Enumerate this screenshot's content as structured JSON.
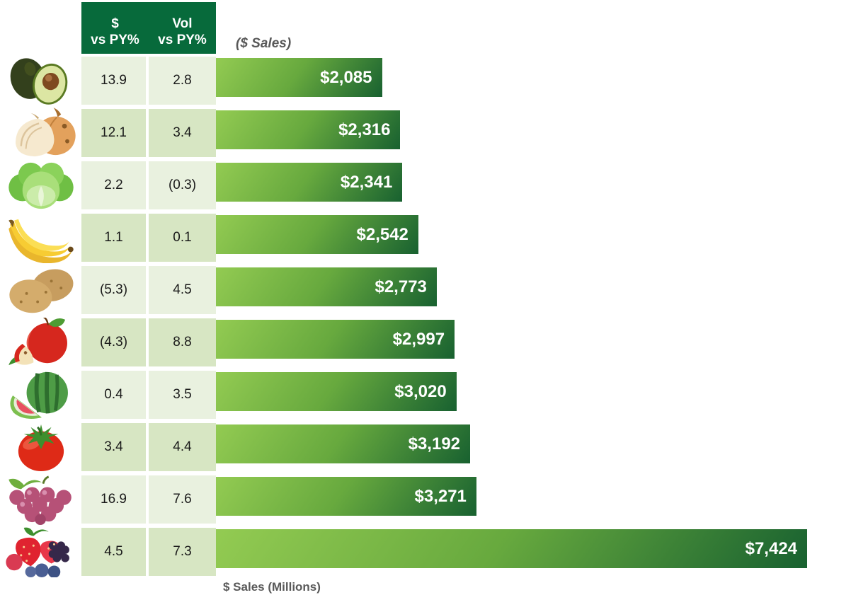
{
  "header": {
    "col1_line1": "$",
    "col1_line2": "vs PY%",
    "col2_line1": "Vol",
    "col2_line2": "vs PY%",
    "chart_label": "($ Sales)"
  },
  "footer": {
    "axis_label": "$ Sales (Millions)"
  },
  "rows": [
    {
      "fruit": "avocado",
      "dollar_vs_py": "13.9",
      "vol_vs_py": "2.8",
      "sales_label": "$2,085",
      "sales_value": 2085
    },
    {
      "fruit": "onion",
      "dollar_vs_py": "12.1",
      "vol_vs_py": "3.4",
      "sales_label": "$2,316",
      "sales_value": 2316
    },
    {
      "fruit": "lettuce",
      "dollar_vs_py": "2.2",
      "vol_vs_py": "(0.3)",
      "sales_label": "$2,341",
      "sales_value": 2341
    },
    {
      "fruit": "banana",
      "dollar_vs_py": "1.1",
      "vol_vs_py": "0.1",
      "sales_label": "$2,542",
      "sales_value": 2542
    },
    {
      "fruit": "potato",
      "dollar_vs_py": "(5.3)",
      "vol_vs_py": "4.5",
      "sales_label": "$2,773",
      "sales_value": 2773
    },
    {
      "fruit": "apple",
      "dollar_vs_py": "(4.3)",
      "vol_vs_py": "8.8",
      "sales_label": "$2,997",
      "sales_value": 2997
    },
    {
      "fruit": "watermelon",
      "dollar_vs_py": "0.4",
      "vol_vs_py": "3.5",
      "sales_label": "$3,020",
      "sales_value": 3020
    },
    {
      "fruit": "tomato",
      "dollar_vs_py": "3.4",
      "vol_vs_py": "4.4",
      "sales_label": "$3,192",
      "sales_value": 3192
    },
    {
      "fruit": "grapes",
      "dollar_vs_py": "16.9",
      "vol_vs_py": "7.6",
      "sales_label": "$3,271",
      "sales_value": 3271
    },
    {
      "fruit": "berries",
      "dollar_vs_py": "4.5",
      "vol_vs_py": "7.3",
      "sales_label": "$7,424",
      "sales_value": 7424
    }
  ],
  "chart_data": {
    "type": "bar",
    "orientation": "horizontal",
    "title": "($ Sales)",
    "xlabel": "$ Sales (Millions)",
    "categories": [
      "Avocado",
      "Onion",
      "Lettuce",
      "Banana",
      "Potato",
      "Apple",
      "Watermelon",
      "Tomato",
      "Grapes",
      "Berries"
    ],
    "series": [
      {
        "name": "$ Sales (Millions)",
        "values": [
          2085,
          2316,
          2341,
          2542,
          2773,
          2997,
          3020,
          3192,
          3271,
          7424
        ]
      },
      {
        "name": "$ vs PY%",
        "values": [
          13.9,
          12.1,
          2.2,
          1.1,
          -5.3,
          -4.3,
          0.4,
          3.4,
          16.9,
          4.5
        ]
      },
      {
        "name": "Vol vs PY%",
        "values": [
          2.8,
          3.4,
          -0.3,
          0.1,
          4.5,
          8.8,
          3.5,
          4.4,
          7.6,
          7.3
        ]
      }
    ],
    "value_labels": [
      "$2,085",
      "$2,316",
      "$2,341",
      "$2,542",
      "$2,773",
      "$2,997",
      "$3,020",
      "$3,192",
      "$3,271",
      "$7,424"
    ],
    "negative_format": "parentheses",
    "xlim": [
      0,
      7424
    ],
    "grid": false,
    "legend": "none",
    "sort": "ascending by $ Sales"
  },
  "colors": {
    "header_bg": "#076A3B",
    "row_light": "#E9F1DF",
    "row_dark": "#D7E6C3",
    "bar_top": "#93CB52",
    "bar_mid": "#67A93E",
    "bar_bottom": "#186130",
    "bar_label": "#FFFFFF",
    "muted_text": "#595959",
    "cell_text": "#1A1A1A"
  }
}
